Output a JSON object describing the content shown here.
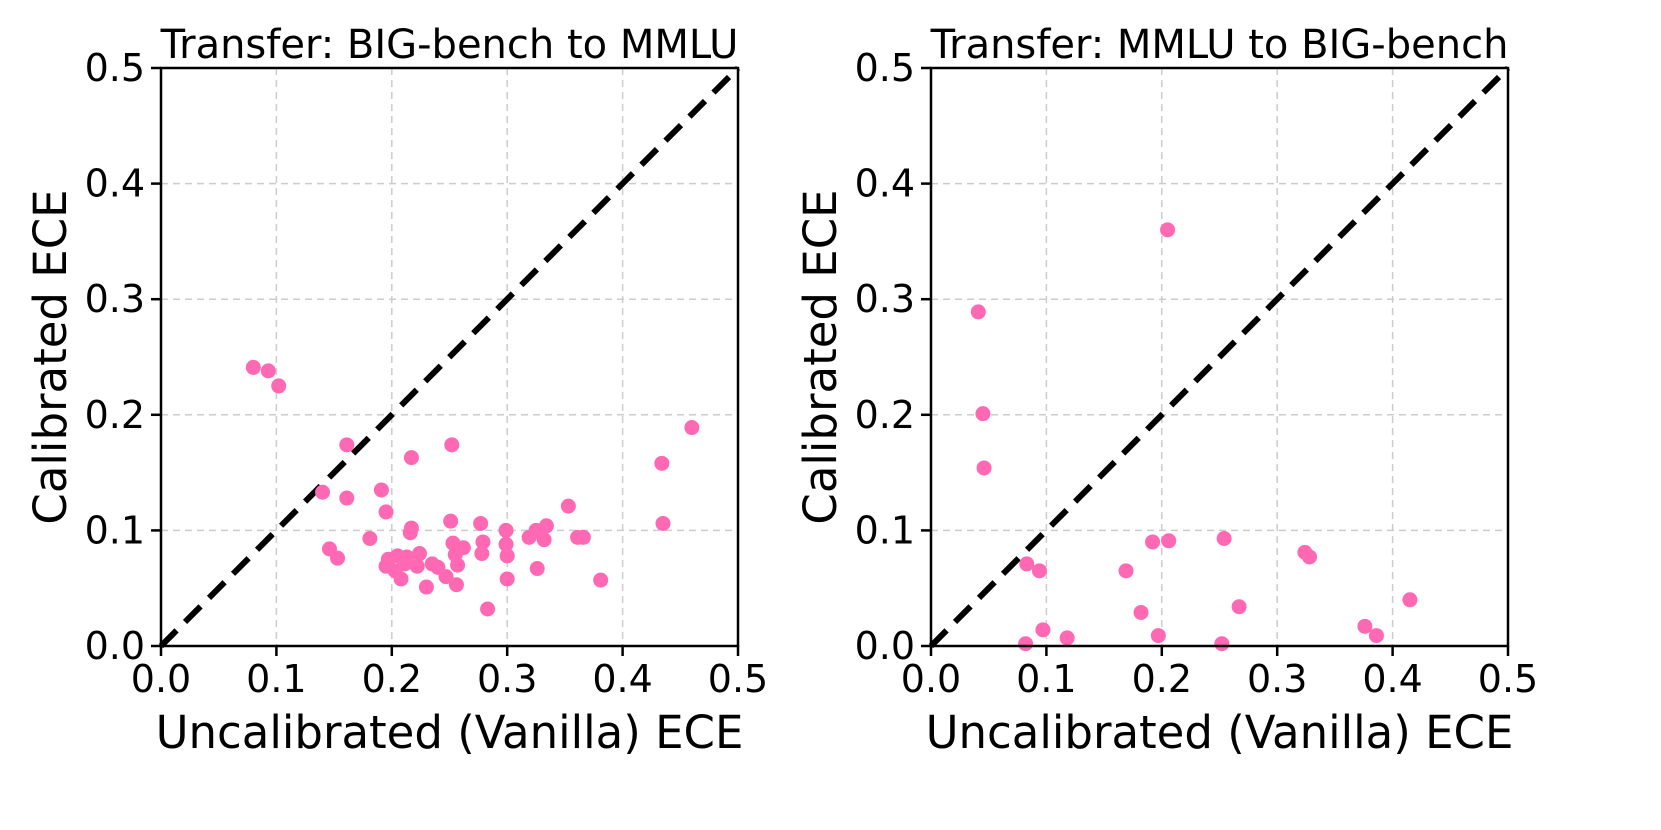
{
  "colors": {
    "point": "#ff69b4",
    "diagonal": "#000000",
    "grid": "#cccccc",
    "axis": "#000000"
  },
  "chart_data": [
    {
      "type": "scatter",
      "title": "Transfer: BIG-bench to MMLU",
      "xlabel": "Uncalibrated (Vanilla) ECE",
      "ylabel": "Calibrated ECE",
      "xlim": [
        0.0,
        0.5
      ],
      "ylim": [
        0.0,
        0.5
      ],
      "xticks": [
        "0.0",
        "0.1",
        "0.2",
        "0.3",
        "0.4",
        "0.5"
      ],
      "yticks": [
        "0.0",
        "0.1",
        "0.2",
        "0.3",
        "0.4",
        "0.5"
      ],
      "grid": true,
      "reference_line": "y = x (dashed)",
      "points": [
        {
          "x": 0.08,
          "y": 0.241
        },
        {
          "x": 0.093,
          "y": 0.238
        },
        {
          "x": 0.102,
          "y": 0.225
        },
        {
          "x": 0.14,
          "y": 0.133
        },
        {
          "x": 0.146,
          "y": 0.084
        },
        {
          "x": 0.153,
          "y": 0.076
        },
        {
          "x": 0.161,
          "y": 0.174
        },
        {
          "x": 0.161,
          "y": 0.128
        },
        {
          "x": 0.181,
          "y": 0.093
        },
        {
          "x": 0.191,
          "y": 0.135
        },
        {
          "x": 0.195,
          "y": 0.116
        },
        {
          "x": 0.195,
          "y": 0.069
        },
        {
          "x": 0.197,
          "y": 0.075
        },
        {
          "x": 0.203,
          "y": 0.065
        },
        {
          "x": 0.205,
          "y": 0.078
        },
        {
          "x": 0.208,
          "y": 0.058
        },
        {
          "x": 0.211,
          "y": 0.071
        },
        {
          "x": 0.213,
          "y": 0.077
        },
        {
          "x": 0.216,
          "y": 0.098
        },
        {
          "x": 0.217,
          "y": 0.102
        },
        {
          "x": 0.217,
          "y": 0.163
        },
        {
          "x": 0.222,
          "y": 0.069
        },
        {
          "x": 0.224,
          "y": 0.08
        },
        {
          "x": 0.23,
          "y": 0.051
        },
        {
          "x": 0.235,
          "y": 0.071
        },
        {
          "x": 0.24,
          "y": 0.068
        },
        {
          "x": 0.247,
          "y": 0.06
        },
        {
          "x": 0.251,
          "y": 0.108
        },
        {
          "x": 0.252,
          "y": 0.174
        },
        {
          "x": 0.253,
          "y": 0.089
        },
        {
          "x": 0.255,
          "y": 0.079
        },
        {
          "x": 0.256,
          "y": 0.053
        },
        {
          "x": 0.257,
          "y": 0.07
        },
        {
          "x": 0.262,
          "y": 0.085
        },
        {
          "x": 0.277,
          "y": 0.106
        },
        {
          "x": 0.278,
          "y": 0.08
        },
        {
          "x": 0.279,
          "y": 0.09
        },
        {
          "x": 0.283,
          "y": 0.032
        },
        {
          "x": 0.299,
          "y": 0.1
        },
        {
          "x": 0.299,
          "y": 0.088
        },
        {
          "x": 0.3,
          "y": 0.078
        },
        {
          "x": 0.3,
          "y": 0.058
        },
        {
          "x": 0.319,
          "y": 0.094
        },
        {
          "x": 0.325,
          "y": 0.1
        },
        {
          "x": 0.326,
          "y": 0.067
        },
        {
          "x": 0.332,
          "y": 0.092
        },
        {
          "x": 0.334,
          "y": 0.104
        },
        {
          "x": 0.353,
          "y": 0.121
        },
        {
          "x": 0.361,
          "y": 0.094
        },
        {
          "x": 0.366,
          "y": 0.094
        },
        {
          "x": 0.381,
          "y": 0.057
        },
        {
          "x": 0.434,
          "y": 0.158
        },
        {
          "x": 0.435,
          "y": 0.106
        },
        {
          "x": 0.46,
          "y": 0.189
        }
      ]
    },
    {
      "type": "scatter",
      "title": "Transfer: MMLU to BIG-bench",
      "xlabel": "Uncalibrated (Vanilla) ECE",
      "ylabel": "Calibrated ECE",
      "xlim": [
        0.0,
        0.5
      ],
      "ylim": [
        0.0,
        0.5
      ],
      "xticks": [
        "0.0",
        "0.1",
        "0.2",
        "0.3",
        "0.4",
        "0.5"
      ],
      "yticks": [
        "0.0",
        "0.1",
        "0.2",
        "0.3",
        "0.4",
        "0.5"
      ],
      "grid": true,
      "reference_line": "y = x (dashed)",
      "points": [
        {
          "x": 0.041,
          "y": 0.289
        },
        {
          "x": 0.045,
          "y": 0.201
        },
        {
          "x": 0.046,
          "y": 0.154
        },
        {
          "x": 0.082,
          "y": 0.002
        },
        {
          "x": 0.083,
          "y": 0.071
        },
        {
          "x": 0.094,
          "y": 0.065
        },
        {
          "x": 0.097,
          "y": 0.014
        },
        {
          "x": 0.118,
          "y": 0.007
        },
        {
          "x": 0.169,
          "y": 0.065
        },
        {
          "x": 0.182,
          "y": 0.029
        },
        {
          "x": 0.192,
          "y": 0.09
        },
        {
          "x": 0.197,
          "y": 0.009
        },
        {
          "x": 0.205,
          "y": 0.36
        },
        {
          "x": 0.206,
          "y": 0.091
        },
        {
          "x": 0.252,
          "y": 0.002
        },
        {
          "x": 0.254,
          "y": 0.093
        },
        {
          "x": 0.267,
          "y": 0.034
        },
        {
          "x": 0.324,
          "y": 0.081
        },
        {
          "x": 0.328,
          "y": 0.077
        },
        {
          "x": 0.376,
          "y": 0.017
        },
        {
          "x": 0.386,
          "y": 0.009
        },
        {
          "x": 0.415,
          "y": 0.04
        }
      ]
    }
  ]
}
